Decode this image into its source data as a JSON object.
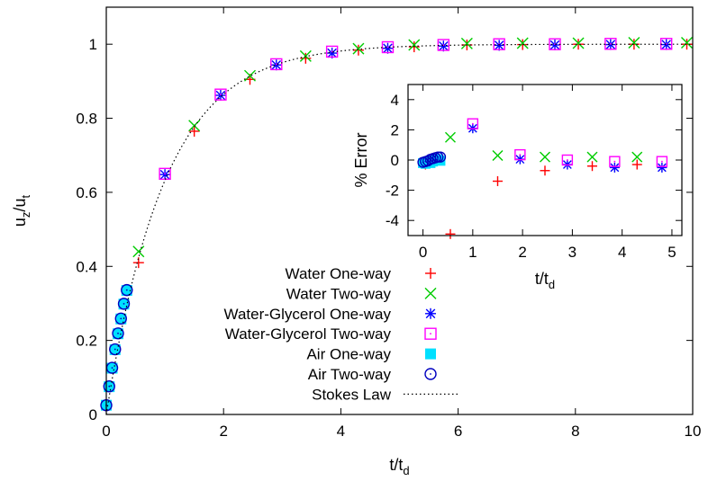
{
  "colors": {
    "water_one_way": "#ff0000",
    "water_two_way": "#00cc00",
    "glycerol_one_way": "#0000ff",
    "glycerol_two_way": "#ff00ff",
    "air_one_way": "#00e0ff",
    "air_two_way": "#0000c0",
    "stokes": "#000000"
  },
  "chart_data": [
    {
      "type": "scatter",
      "xlabel": "t/t_d",
      "ylabel": "u_z/u_t",
      "xlim": [
        0,
        10
      ],
      "ylim": [
        0,
        1.1
      ],
      "xticks": [
        "0",
        "2",
        "4",
        "6",
        "8",
        "10"
      ],
      "yticks": [
        "0",
        "0.2",
        "0.4",
        "0.6",
        "0.8",
        "1"
      ],
      "grid": false,
      "legend_position": "bottom-right",
      "series": [
        {
          "name": "Water One-way",
          "marker": "plus",
          "color": "#ff0000",
          "x": [
            0.55,
            1.5,
            2.45,
            3.4,
            4.3,
            5.25,
            6.15,
            7.1,
            8.05,
            9.0,
            9.9
          ],
          "y": [
            0.41,
            0.765,
            0.905,
            0.962,
            0.984,
            0.993,
            0.998,
            0.999,
            1.0,
            1.0,
            1.0
          ]
        },
        {
          "name": "Water Two-way",
          "marker": "cross",
          "color": "#00cc00",
          "x": [
            0.55,
            1.5,
            2.45,
            3.4,
            4.3,
            5.25,
            6.15,
            7.1,
            8.05,
            9.0,
            9.9
          ],
          "y": [
            0.44,
            0.78,
            0.915,
            0.968,
            0.988,
            0.998,
            1.002,
            1.003,
            1.003,
            1.004,
            1.004
          ]
        },
        {
          "name": "Water-Glycerol One-way",
          "marker": "star",
          "color": "#0000ff",
          "x": [
            1.0,
            1.95,
            2.9,
            3.85,
            4.8,
            5.75,
            6.7,
            7.65,
            8.6,
            9.55
          ],
          "y": [
            0.648,
            0.862,
            0.944,
            0.976,
            0.989,
            0.995,
            0.997,
            0.998,
            0.999,
            0.999
          ]
        },
        {
          "name": "Water-Glycerol Two-way",
          "marker": "square",
          "color": "#ff00ff",
          "x": [
            1.0,
            1.95,
            2.9,
            3.85,
            4.8,
            5.75,
            6.7,
            7.65,
            8.6,
            9.55
          ],
          "y": [
            0.65,
            0.864,
            0.946,
            0.98,
            0.992,
            0.998,
            1.0,
            1.0,
            1.001,
            1.001
          ]
        },
        {
          "name": "Air One-way",
          "marker": "filled-square",
          "color": "#00e0ff",
          "x": [
            0.0,
            0.05,
            0.1,
            0.15,
            0.2,
            0.25,
            0.3,
            0.35
          ],
          "y": [
            0.025,
            0.075,
            0.125,
            0.175,
            0.218,
            0.258,
            0.298,
            0.335
          ]
        },
        {
          "name": "Air Two-way",
          "marker": "circle",
          "color": "#0000c0",
          "x": [
            0.0,
            0.05,
            0.1,
            0.15,
            0.2,
            0.25,
            0.3,
            0.35
          ],
          "y": [
            0.025,
            0.076,
            0.126,
            0.176,
            0.219,
            0.259,
            0.299,
            0.336
          ]
        },
        {
          "name": "Stokes Law",
          "marker": "dotted-line",
          "color": "#000000",
          "function": "1-exp(-t)"
        }
      ]
    },
    {
      "type": "scatter",
      "xlabel": "t/t_d",
      "ylabel": "% Error",
      "xlim": [
        -0.3,
        5.2
      ],
      "ylim": [
        -5,
        5
      ],
      "xticks": [
        "0",
        "1",
        "2",
        "3",
        "4",
        "5"
      ],
      "yticks": [
        "-4",
        "-2",
        "0",
        "2",
        "4"
      ],
      "grid": false,
      "series": [
        {
          "name": "Water One-way",
          "marker": "plus",
          "color": "#ff0000",
          "x": [
            0.05,
            0.55,
            1.5,
            2.45,
            3.4,
            4.3
          ],
          "y": [
            -0.3,
            -4.9,
            -1.4,
            -0.7,
            -0.4,
            -0.3
          ]
        },
        {
          "name": "Water Two-way",
          "marker": "cross",
          "color": "#00cc00",
          "x": [
            0.55,
            1.5,
            2.45,
            3.4,
            4.3
          ],
          "y": [
            1.5,
            0.3,
            0.2,
            0.2,
            0.2
          ]
        },
        {
          "name": "Water-Glycerol One-way",
          "marker": "star",
          "color": "#0000ff",
          "x": [
            1.0,
            1.95,
            2.9,
            3.85,
            4.8
          ],
          "y": [
            2.1,
            0.05,
            -0.3,
            -0.5,
            -0.5
          ]
        },
        {
          "name": "Water-Glycerol Two-way",
          "marker": "square",
          "color": "#ff00ff",
          "x": [
            1.0,
            1.95,
            2.9,
            3.85,
            4.8
          ],
          "y": [
            2.4,
            0.35,
            0.0,
            -0.1,
            -0.1
          ]
        },
        {
          "name": "Air One-way",
          "marker": "filled-square",
          "color": "#00e0ff",
          "x": [
            0.0,
            0.05,
            0.1,
            0.15,
            0.2,
            0.25,
            0.3,
            0.35
          ],
          "y": [
            -0.2,
            -0.25,
            -0.15,
            -0.2,
            -0.1,
            0.05,
            0.05,
            -0.05
          ]
        },
        {
          "name": "Air Two-way",
          "marker": "circle",
          "color": "#0000c0",
          "x": [
            0.0,
            0.05,
            0.1,
            0.15,
            0.2,
            0.25,
            0.3,
            0.35
          ],
          "y": [
            -0.15,
            -0.1,
            -0.05,
            0.05,
            0.1,
            0.15,
            0.2,
            0.2
          ]
        }
      ]
    }
  ],
  "legend": [
    {
      "label": "Water One-way",
      "marker": "plus",
      "color": "#ff0000"
    },
    {
      "label": "Water Two-way",
      "marker": "cross",
      "color": "#00cc00"
    },
    {
      "label": "Water-Glycerol One-way",
      "marker": "star",
      "color": "#0000ff"
    },
    {
      "label": "Water-Glycerol Two-way",
      "marker": "square",
      "color": "#ff00ff"
    },
    {
      "label": "Air One-way",
      "marker": "filled-square",
      "color": "#00e0ff"
    },
    {
      "label": "Air Two-way",
      "marker": "circle",
      "color": "#0000c0"
    },
    {
      "label": "Stokes Law",
      "marker": "dotted-line",
      "color": "#000000"
    }
  ]
}
